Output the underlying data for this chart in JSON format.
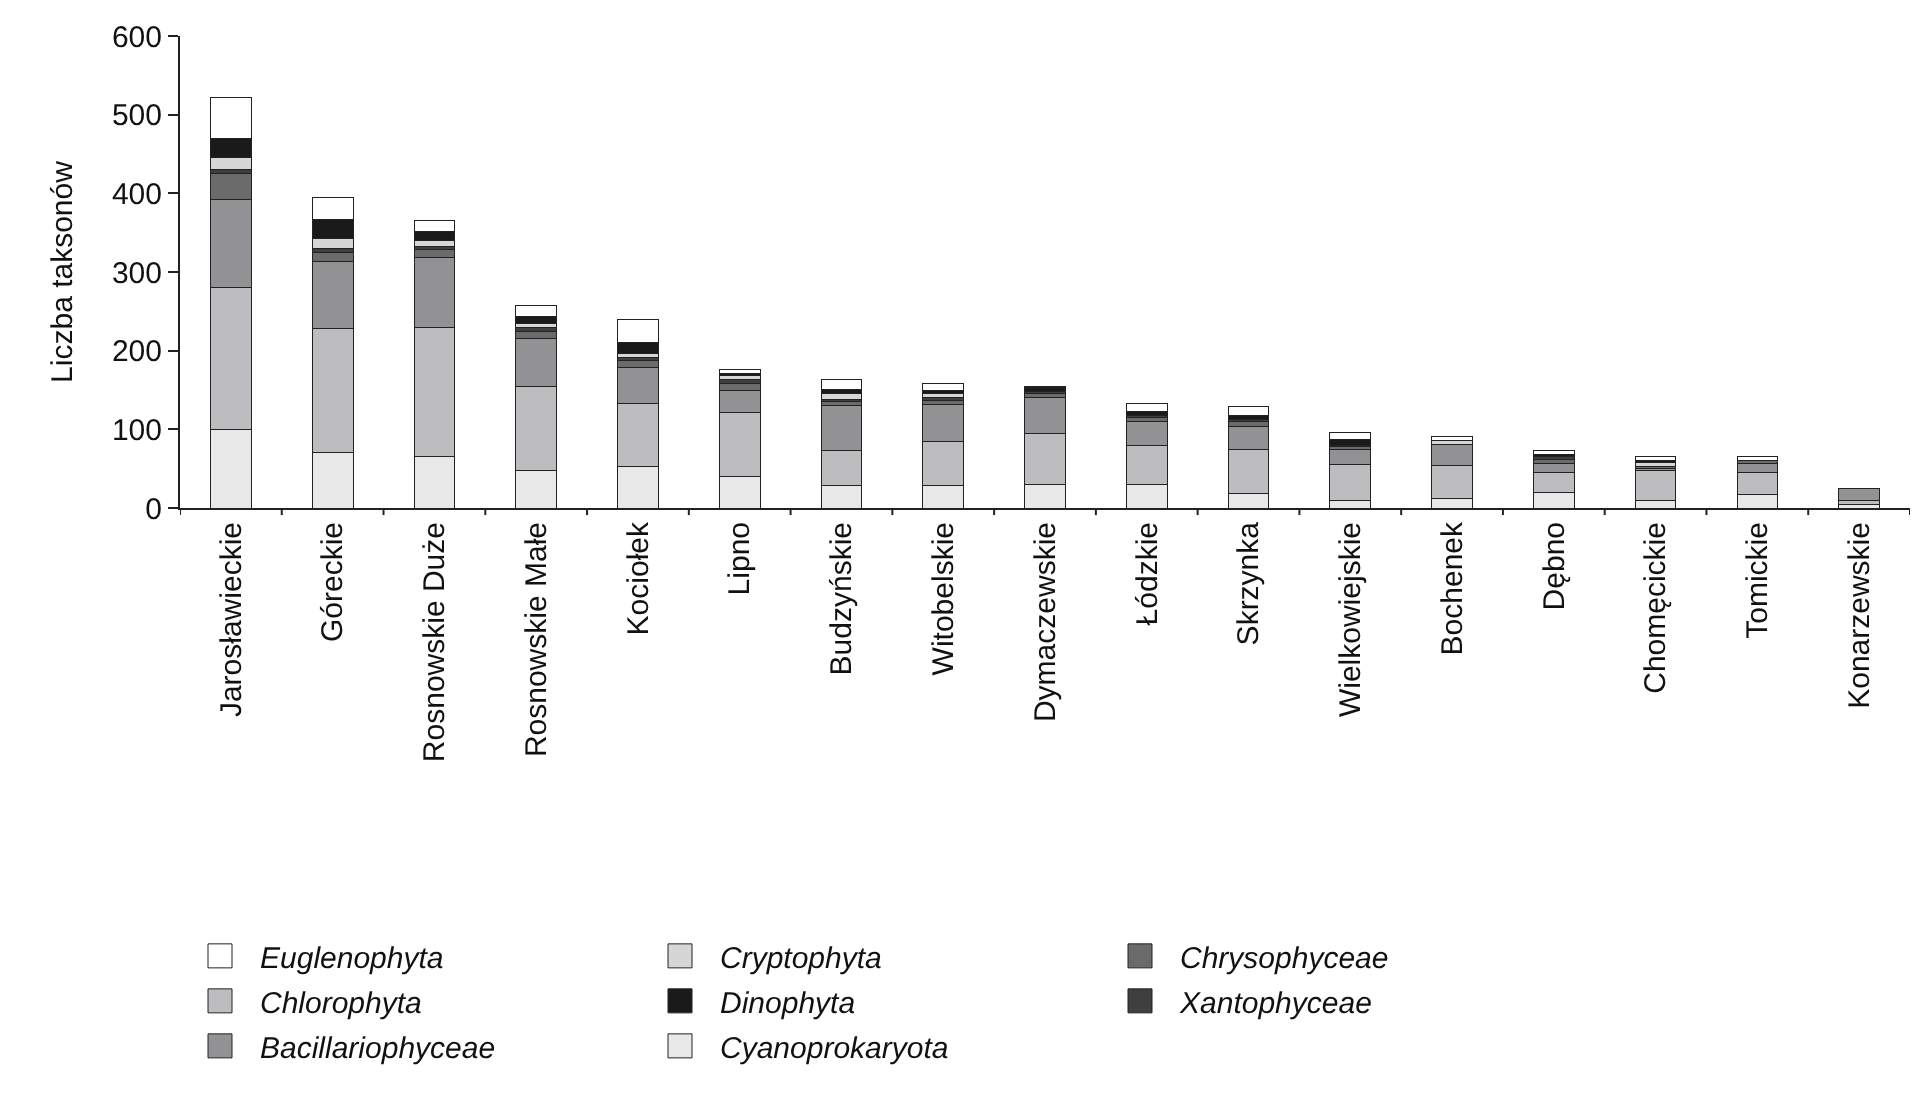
{
  "chart_data": {
    "type": "bar",
    "stacked": true,
    "ylabel": "Liczba taksonów",
    "categories": [
      "Jarosławieckie",
      "Góreckie",
      "Rosnowskie Duże",
      "Rosnowskie Małe",
      "Kociołek",
      "Lipno",
      "Budzyńskie",
      "Witobelskie",
      "Dymaczewskie",
      "Łódzkie",
      "Skrzynka",
      "Wielkowiejskie",
      "Bochenek",
      "Dębno",
      "Chomęcickie",
      "Tomickie",
      "Konarzewskie"
    ],
    "series": [
      {
        "name": "Cyanoprokaryota",
        "color": "#e8e8e9",
        "values": [
          100,
          70,
          65,
          48,
          53,
          40,
          28,
          28,
          30,
          30,
          18,
          10,
          12,
          20,
          10,
          17,
          5
        ]
      },
      {
        "name": "Chlorophyta",
        "color": "#bdbdbf",
        "values": [
          180,
          158,
          165,
          107,
          80,
          82,
          45,
          57,
          65,
          50,
          57,
          45,
          42,
          25,
          38,
          28,
          5
        ]
      },
      {
        "name": "Bacillariophyceae",
        "color": "#929294",
        "values": [
          112,
          85,
          88,
          60,
          45,
          28,
          57,
          47,
          45,
          30,
          28,
          20,
          27,
          12,
          2,
          12,
          15
        ]
      },
      {
        "name": "Chrysophyceae",
        "color": "#6b6b6c",
        "values": [
          33,
          12,
          10,
          10,
          10,
          8,
          5,
          5,
          5,
          5,
          7,
          3,
          null,
          5,
          3,
          3,
          null
        ]
      },
      {
        "name": "Xantophyceae",
        "color": "#3f3f3f",
        "values": [
          5,
          5,
          5,
          5,
          3,
          5,
          3,
          3,
          3,
          3,
          3,
          2,
          null,
          3,
          null,
          null,
          null
        ]
      },
      {
        "name": "Cryptophyta",
        "color": "#d6d6d6",
        "values": [
          15,
          12,
          7,
          5,
          5,
          5,
          8,
          5,
          null,
          null,
          null,
          null,
          5,
          null,
          5,
          null,
          null
        ]
      },
      {
        "name": "Dinophyta",
        "color": "#1a1a1a",
        "values": [
          25,
          25,
          12,
          8,
          15,
          3,
          5,
          5,
          5,
          5,
          5,
          7,
          null,
          3,
          2,
          null,
          null
        ]
      },
      {
        "name": "Euglenophyta",
        "color": "#ffffff",
        "values": [
          52,
          28,
          13,
          14,
          28,
          5,
          12,
          8,
          2,
          10,
          11,
          9,
          5,
          5,
          5,
          5,
          null
        ]
      }
    ],
    "ylim": [
      0,
      600
    ],
    "yticks": [
      0,
      100,
      200,
      300,
      400,
      500,
      600
    ],
    "legend": "bottom"
  }
}
